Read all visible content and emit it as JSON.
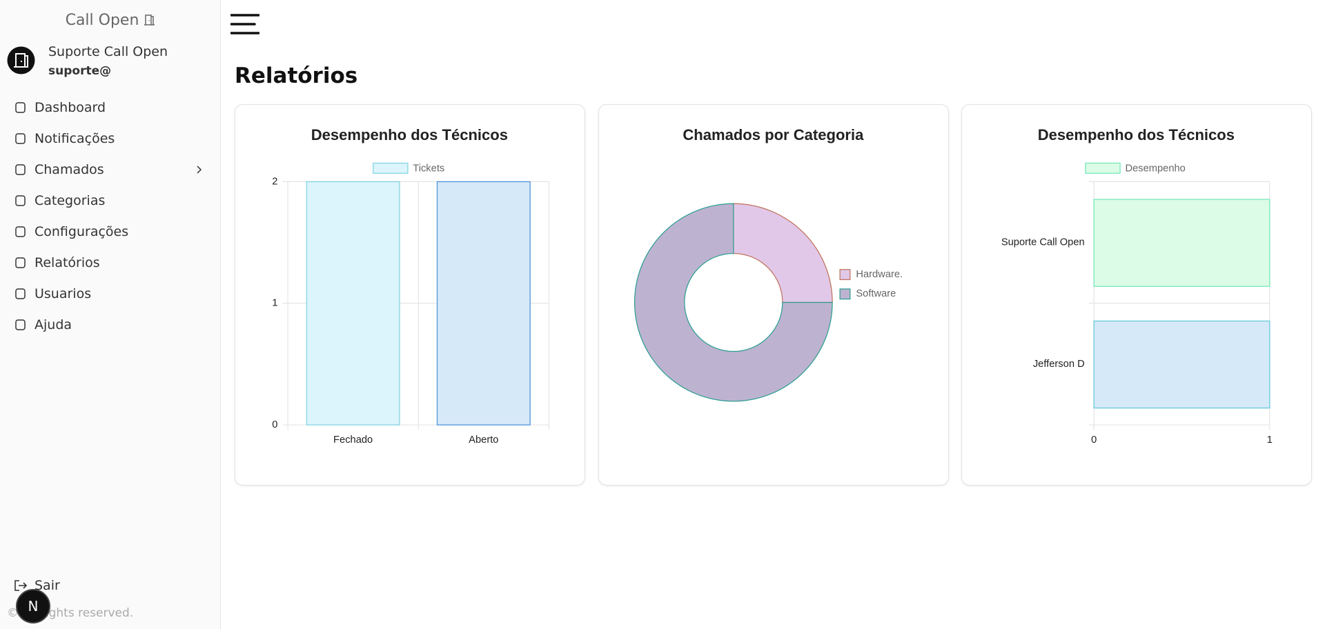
{
  "sidebar": {
    "brand": "Call Open",
    "user_name": "Suporte Call Open",
    "user_email": "suporte@",
    "nav": [
      "Dashboard",
      "Notificações",
      "Chamados",
      "Categorias",
      "Configurações",
      "Relatórios",
      "Usuarios",
      "Ajuda"
    ],
    "logout": "Sair",
    "footer": "© All rights reserved.",
    "badge": "N"
  },
  "header": {
    "title": "Relatórios"
  },
  "chart_data": [
    {
      "type": "bar",
      "title": "Desempenho dos Técnicos",
      "categories": [
        "Fechado",
        "Aberto"
      ],
      "series": [
        {
          "name": "Tickets",
          "color": "#dcf4fb",
          "colors": [
            "#dcf4fb",
            "#d6e9f8"
          ],
          "border_colors": [
            "#7dd3e0",
            "#4a90d9"
          ],
          "values": [
            2,
            2
          ]
        }
      ],
      "ylim": [
        0,
        2
      ],
      "yticks": [
        0,
        1,
        2
      ],
      "grid": true
    },
    {
      "type": "doughnut",
      "title": "Chamados por Categoria",
      "categories": [
        "Hardware.",
        "Software"
      ],
      "values": [
        1,
        3
      ],
      "colors": [
        "#e1c8e8",
        "#bdb3d1"
      ],
      "border_colors": [
        "#c0705a",
        "#2a9d8f"
      ]
    },
    {
      "type": "hbar",
      "title": "Desempenho dos Técnicos",
      "categories": [
        "Suporte Call Open",
        "Jefferson D"
      ],
      "series": [
        {
          "name": "Desempenho",
          "color": "#dcfce7",
          "colors": [
            "#dcfce7",
            "#d6e9f8"
          ],
          "border_colors": [
            "#6ee7b7",
            "#5ec8d8"
          ],
          "values": [
            1,
            1
          ]
        }
      ],
      "xlim": [
        0,
        1
      ],
      "xticks": [
        0,
        1
      ],
      "grid": true
    }
  ]
}
